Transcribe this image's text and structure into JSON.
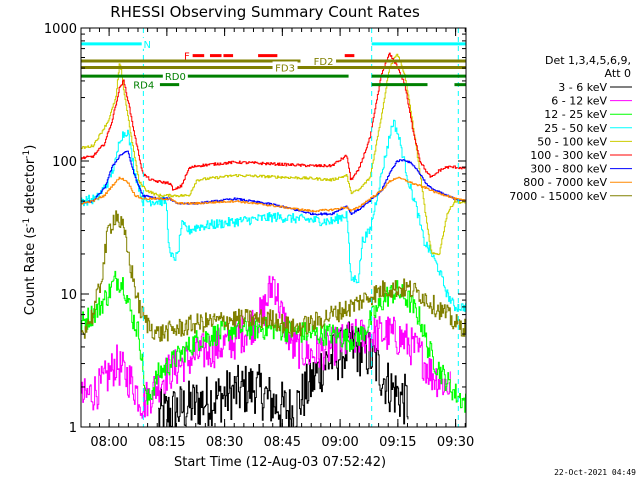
{
  "chart_data": {
    "type": "line",
    "title": "RHESSI Observing Summary Count Rates",
    "xlabel": "Start Time (12-Aug-03 07:52:42)",
    "ylabel": "Count Rate (s-1 detector-1)",
    "ylabel_parts": {
      "main": "Count Rate (s",
      "exp1": "-1",
      "mid": " detector",
      "exp2": "-1",
      "end": ")"
    },
    "x_unit": "minutes after 07:52:42",
    "xlim": [
      0,
      100
    ],
    "ylim": [
      1,
      1000
    ],
    "y_scale": "log",
    "x_ticks": [
      {
        "label": "08:00",
        "value": 7.3
      },
      {
        "label": "08:15",
        "value": 22.3
      },
      {
        "label": "08:30",
        "value": 37.3
      },
      {
        "label": "08:45",
        "value": 52.3
      },
      {
        "label": "09:00",
        "value": 67.3
      },
      {
        "label": "09:15",
        "value": 82.3
      },
      {
        "label": "09:30",
        "value": 97.3
      }
    ],
    "y_ticks": [
      {
        "label": "1",
        "value": 1
      },
      {
        "label": "10",
        "value": 10
      },
      {
        "label": "100",
        "value": 100
      },
      {
        "label": "1000",
        "value": 1000
      }
    ],
    "legend": {
      "header": [
        "Det 1,3,4,5,6,9,",
        "Att 0"
      ],
      "position": "right"
    },
    "series": [
      {
        "name": "3 - 6 keV",
        "color": "#000000",
        "noise": 0.8,
        "x": [
          0,
          10,
          17,
          20,
          30,
          45,
          50,
          55,
          58,
          63,
          67,
          70,
          75,
          80,
          85,
          88,
          91,
          96
        ],
        "y": [
          null,
          null,
          null,
          1.2,
          1.5,
          2.0,
          1.5,
          1.3,
          1.8,
          3.0,
          3.5,
          4.0,
          3.5,
          2.0,
          1.5,
          null,
          null,
          null
        ]
      },
      {
        "name": "6 - 12 keV",
        "color": "#ff00ff",
        "noise": 0.6,
        "x": [
          0,
          5,
          9,
          13,
          16,
          22,
          30,
          40,
          47,
          50,
          52,
          55,
          60,
          65,
          70,
          75,
          80,
          84,
          88,
          91,
          96
        ],
        "y": [
          1.6,
          2.0,
          3.0,
          2.2,
          1.5,
          2.5,
          3.5,
          4.5,
          7.0,
          13.0,
          7.0,
          4.0,
          3.5,
          4.0,
          4.5,
          5.0,
          5.0,
          4.5,
          3.5,
          2.5,
          2.0
        ]
      },
      {
        "name": "12 - 25 keV",
        "color": "#00ff00",
        "noise": 0.35,
        "x": [
          0,
          4,
          7,
          9,
          11,
          13,
          15,
          17,
          20,
          30,
          40,
          50,
          60,
          65,
          70,
          73,
          76,
          79,
          82,
          85,
          88,
          90,
          92,
          95,
          97,
          100
        ],
        "y": [
          6.0,
          7.5,
          10.0,
          13.0,
          12.0,
          7.0,
          5.0,
          1.5,
          2.5,
          4.5,
          5.5,
          5.5,
          5.0,
          5.0,
          4.5,
          5.0,
          7.0,
          9.5,
          10.5,
          9.0,
          6.5,
          4.0,
          3.0,
          2.2,
          1.8,
          1.5
        ]
      },
      {
        "name": "25 - 50 keV",
        "color": "#00ffff",
        "noise": 0.15,
        "x": [
          0,
          4,
          7,
          9,
          10,
          12,
          14,
          16,
          18,
          20,
          22,
          23,
          25,
          26,
          28,
          30,
          40,
          50,
          60,
          65,
          69,
          70,
          72,
          73,
          75,
          78,
          80,
          81,
          82,
          83,
          85,
          87,
          89,
          91,
          93,
          95,
          97,
          100
        ],
        "y": [
          50,
          52,
          70,
          100,
          150,
          170,
          80,
          50,
          50,
          50,
          50,
          19,
          19,
          33,
          30,
          32,
          35,
          38,
          36,
          35,
          40,
          13,
          13,
          25,
          30,
          80,
          150,
          200,
          170,
          130,
          70,
          45,
          25,
          20,
          15,
          10,
          8,
          8
        ]
      },
      {
        "name": "50 - 100 keV",
        "color": "#cccc00",
        "noise": 0.04,
        "x": [
          0,
          3,
          5,
          7,
          9,
          10,
          11,
          13,
          15,
          17,
          20,
          23,
          25,
          28,
          30,
          40,
          50,
          60,
          65,
          69,
          70,
          72,
          75,
          78,
          80,
          82,
          84,
          86,
          88,
          90,
          91,
          93,
          95,
          97,
          100
        ],
        "y": [
          125,
          130,
          160,
          200,
          300,
          560,
          350,
          150,
          70,
          60,
          55,
          55,
          55,
          55,
          72,
          78,
          76,
          74,
          72,
          78,
          58,
          60,
          75,
          220,
          500,
          650,
          450,
          200,
          80,
          30,
          20,
          20,
          40,
          50,
          48
        ]
      },
      {
        "name": "100 - 300 keV",
        "color": "#ff0000",
        "noise": 0.04,
        "x": [
          0,
          3,
          6,
          8,
          10,
          11,
          12,
          14,
          16,
          18,
          20,
          23,
          24,
          26,
          28,
          30,
          40,
          50,
          60,
          65,
          69,
          70,
          72,
          75,
          78,
          80,
          82,
          84,
          86,
          88,
          90,
          91,
          93,
          95,
          97,
          100
        ],
        "y": [
          105,
          108,
          135,
          200,
          360,
          400,
          300,
          150,
          80,
          72,
          70,
          68,
          60,
          65,
          88,
          92,
          98,
          95,
          92,
          92,
          110,
          72,
          85,
          150,
          450,
          640,
          520,
          380,
          180,
          100,
          80,
          75,
          85,
          90,
          90,
          88
        ]
      },
      {
        "name": "300 - 800 keV",
        "color": "#0000ff",
        "noise": 0.03,
        "x": [
          0,
          3,
          6,
          8,
          10,
          12,
          14,
          16,
          20,
          23,
          25,
          30,
          40,
          50,
          60,
          65,
          69,
          70,
          72,
          75,
          78,
          80,
          82,
          84,
          86,
          88,
          90,
          92,
          95,
          97,
          100
        ],
        "y": [
          48,
          50,
          62,
          90,
          110,
          120,
          75,
          55,
          52,
          52,
          48,
          48,
          52,
          47,
          40,
          40,
          46,
          40,
          43,
          50,
          60,
          80,
          100,
          102,
          95,
          80,
          65,
          60,
          55,
          52,
          50
        ]
      },
      {
        "name": "800 - 7000 keV",
        "color": "#ff8800",
        "noise": 0.03,
        "x": [
          0,
          3,
          6,
          8,
          10,
          12,
          14,
          16,
          20,
          23,
          25,
          30,
          40,
          50,
          60,
          65,
          69,
          70,
          72,
          75,
          78,
          80,
          82,
          84,
          86,
          88,
          90,
          92,
          95,
          97,
          100
        ],
        "y": [
          48,
          50,
          55,
          65,
          75,
          70,
          55,
          52,
          52,
          52,
          48,
          48,
          50,
          46,
          42,
          43,
          45,
          42,
          45,
          52,
          60,
          70,
          75,
          72,
          68,
          65,
          62,
          58,
          55,
          52,
          50
        ]
      },
      {
        "name": "7000 - 15000 keV",
        "color": "#808000",
        "noise": 0.3,
        "x": [
          0,
          3,
          5,
          7,
          9,
          11,
          13,
          15,
          17,
          20,
          30,
          40,
          50,
          55,
          60,
          65,
          70,
          73,
          76,
          79,
          82,
          85,
          88,
          90,
          92,
          95,
          97,
          100
        ],
        "y": [
          5.0,
          7.0,
          12.0,
          30.0,
          40.0,
          30.0,
          15.0,
          8.0,
          6.0,
          5.0,
          6.0,
          6.5,
          6.5,
          5.5,
          6.0,
          7.0,
          8.0,
          9.0,
          10.0,
          11.0,
          11.0,
          11.0,
          10.0,
          9.0,
          8.0,
          7.0,
          6.0,
          5.5
        ]
      }
    ],
    "annotations": {
      "flags": [
        {
          "label": "N",
          "color": "#00ffff",
          "y": 760,
          "label_x": 17.2,
          "segments": [
            [
              0,
              16.5
            ],
            [
              75.5,
              100
            ]
          ]
        },
        {
          "label": "F",
          "color": "#ff0000",
          "y": 620,
          "label_x": 27.5,
          "segments": [
            [
              29,
              32
            ],
            [
              33.5,
              36.5
            ],
            [
              37,
              39.5
            ],
            [
              46,
              51
            ],
            [
              68.5,
              71
            ]
          ]
        },
        {
          "label": "FD2",
          "color": "#808000",
          "y": 565,
          "label_x": 63,
          "segments": [
            [
              0,
              57
            ],
            [
              61,
              100
            ]
          ]
        },
        {
          "label": "FD3",
          "color": "#808000",
          "y": 505,
          "label_x": 53,
          "segments": [
            [
              0,
              100
            ]
          ]
        },
        {
          "label": "RD0",
          "color": "#008000",
          "y": 435,
          "label_x": 24.5,
          "segments": [
            [
              0,
              69.5
            ],
            [
              75.5,
              100
            ]
          ]
        },
        {
          "label": "RD4",
          "color": "#008000",
          "y": 375,
          "label_x": 16.3,
          "segments": [
            [
              20.5,
              25.5
            ],
            [
              75.5,
              90
            ],
            [
              97,
              100
            ]
          ]
        }
      ],
      "vlines": [
        16.2,
        75.5,
        98
      ],
      "vline_color": "#00ffff"
    }
  },
  "footer": {
    "timestamp": "22-Oct-2021 04:49"
  }
}
